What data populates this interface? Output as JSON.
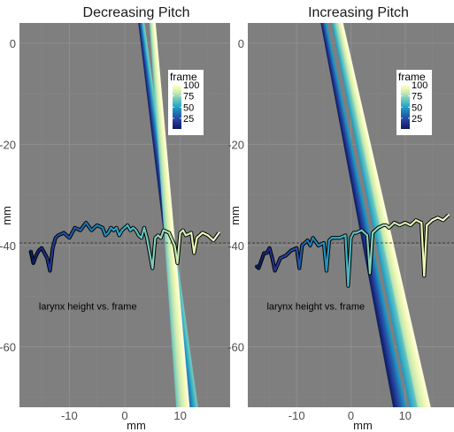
{
  "chart_data": [
    {
      "type": "line",
      "title": "Decreasing Pitch",
      "xlabel": "mm",
      "ylabel": "mm",
      "xlim": [
        -19,
        19
      ],
      "ylim": [
        -72,
        4
      ],
      "x_ticks": [
        -10,
        0,
        10
      ],
      "y_ticks": [
        0,
        -20,
        -40,
        -60
      ],
      "x_tick_labels": [
        "-10",
        "0",
        "10"
      ],
      "y_tick_labels": [
        "0",
        "-20",
        "-40",
        "-60"
      ],
      "grid": true,
      "reference_line_y": -39.5,
      "annotation": "larynx height vs. frame",
      "colorbar": {
        "title": "frame",
        "ticks": [
          100,
          75,
          50,
          25
        ],
        "tick_labels": [
          "100",
          "75",
          "50",
          "25"
        ],
        "range": [
          1,
          100
        ],
        "colors": [
          "#081d58",
          "#253494",
          "#225ea8",
          "#1d91c0",
          "#41b6c4",
          "#7fcdbb",
          "#c7e9b4",
          "#edf8b1",
          "#ffffd9"
        ],
        "placement": "top-right"
      },
      "frame_range": [
        1,
        100
      ],
      "trace_segments": [
        {
          "frame_start": 1,
          "frame_end": 60,
          "x_start": 3.0,
          "x_end": 12.0
        },
        {
          "frame_start": 60,
          "frame_end": 100,
          "x_start": 5.0,
          "x_end": 10.5
        }
      ],
      "trace_y_range": [
        4,
        -72
      ],
      "larynx_series": {
        "x": [
          -17.0,
          -16.5,
          -16.0,
          -15.5,
          -15.0,
          -14.5,
          -14.0,
          -13.5,
          -13.0,
          -12.5,
          -12.0,
          -11.0,
          -10.0,
          -9.0,
          -8.0,
          -7.0,
          -6.0,
          -5.0,
          -4.0,
          -3.5,
          -3.0,
          -2.5,
          -2.0,
          -1.5,
          -1.0,
          -0.5,
          0.0,
          0.5,
          1.0,
          1.5,
          2.0,
          2.5,
          3.0,
          3.5,
          4.0,
          5.0,
          5.5,
          6.0,
          6.5,
          7.0,
          8.0,
          9.0,
          9.5,
          10.0,
          10.5,
          11.0,
          12.0,
          12.5,
          13.0,
          14.0,
          15.0,
          16.0,
          17.0
        ],
        "y": [
          -41.0,
          -43.5,
          -42.0,
          -41.0,
          -40.5,
          -41.5,
          -42.5,
          -45.0,
          -40.5,
          -38.5,
          -38.0,
          -37.5,
          -38.5,
          -36.5,
          -37.0,
          -35.5,
          -37.0,
          -36.0,
          -36.5,
          -38.0,
          -37.5,
          -36.5,
          -37.0,
          -36.5,
          -38.0,
          -37.0,
          -36.5,
          -36.0,
          -37.0,
          -36.5,
          -37.0,
          -38.0,
          -38.5,
          -36.5,
          -38.5,
          -44.5,
          -38.5,
          -38.0,
          -38.5,
          -37.0,
          -37.5,
          -40.0,
          -43.5,
          -37.5,
          -37.0,
          -38.0,
          -37.5,
          -41.5,
          -38.5,
          -37.5,
          -38.0,
          -39.0,
          -37.5
        ],
        "frame": [
          1,
          3,
          5,
          7,
          9,
          11,
          13,
          15,
          17,
          19,
          21,
          23,
          25,
          27,
          29,
          31,
          33,
          35,
          37,
          38,
          40,
          41,
          43,
          44,
          46,
          47,
          49,
          50,
          52,
          53,
          55,
          56,
          58,
          59,
          61,
          64,
          65,
          67,
          68,
          70,
          73,
          75,
          77,
          78,
          80,
          81,
          84,
          86,
          87,
          90,
          93,
          96,
          100
        ]
      }
    },
    {
      "type": "line",
      "title": "Increasing Pitch",
      "xlabel": "mm",
      "ylabel": "mm",
      "xlim": [
        -19,
        19
      ],
      "ylim": [
        -72,
        4
      ],
      "x_ticks": [
        -10,
        0,
        10
      ],
      "y_ticks": [
        0,
        -20,
        -40,
        -60
      ],
      "x_tick_labels": [
        "-10",
        "0",
        "10"
      ],
      "y_tick_labels": [
        "0",
        "-20",
        "-40",
        "-60"
      ],
      "grid": true,
      "reference_line_y": -39.5,
      "annotation": "larynx height vs. frame",
      "colorbar": {
        "title": "frame",
        "ticks": [
          100,
          75,
          50,
          25
        ],
        "tick_labels": [
          "100",
          "75",
          "50",
          "25"
        ],
        "range": [
          1,
          100
        ],
        "colors": [
          "#081d58",
          "#253494",
          "#225ea8",
          "#1d91c0",
          "#41b6c4",
          "#7fcdbb",
          "#c7e9b4",
          "#edf8b1",
          "#ffffd9"
        ],
        "placement": "top-right"
      },
      "frame_range": [
        1,
        100
      ],
      "trace_segments": [
        {
          "frame_start": 1,
          "frame_end": 40,
          "x_start": -5.0,
          "x_end": 9.0
        },
        {
          "frame_start": 40,
          "frame_end": 70,
          "x_start": -3.0,
          "x_end": 12.0
        },
        {
          "frame_start": 70,
          "frame_end": 100,
          "x_start": -2.0,
          "x_end": 13.5
        }
      ],
      "trace_y_range": [
        4,
        -72
      ],
      "larynx_series": {
        "x": [
          -17.5,
          -17.0,
          -16.5,
          -16.0,
          -15.5,
          -15.0,
          -14.5,
          -14.0,
          -13.0,
          -12.0,
          -11.0,
          -10.0,
          -9.5,
          -9.0,
          -8.5,
          -8.0,
          -7.5,
          -7.0,
          -6.0,
          -5.0,
          -4.5,
          -4.0,
          -3.5,
          -3.0,
          -2.0,
          -1.0,
          -0.5,
          0.0,
          0.5,
          1.0,
          2.0,
          3.0,
          3.5,
          4.0,
          5.0,
          6.0,
          6.5,
          7.0,
          8.0,
          9.0,
          10.0,
          11.0,
          12.0,
          13.0,
          13.5,
          14.0,
          15.0,
          16.0,
          17.0,
          18.0
        ],
        "y": [
          -44.0,
          -44.5,
          -43.0,
          -41.5,
          -41.5,
          -40.5,
          -42.5,
          -45.0,
          -42.5,
          -42.0,
          -41.0,
          -40.5,
          -44.5,
          -40.0,
          -39.5,
          -39.0,
          -40.0,
          -38.5,
          -40.0,
          -39.5,
          -45.0,
          -39.0,
          -38.5,
          -38.5,
          -38.5,
          -38.0,
          -48.0,
          -38.5,
          -37.5,
          -37.5,
          -37.0,
          -38.0,
          -45.5,
          -37.5,
          -36.5,
          -36.0,
          -36.0,
          -36.5,
          -35.5,
          -36.0,
          -35.5,
          -36.0,
          -35.0,
          -35.5,
          -46.0,
          -36.0,
          -35.0,
          -34.5,
          -35.0,
          -34.0
        ],
        "frame": [
          1,
          3,
          5,
          7,
          9,
          11,
          13,
          15,
          17,
          19,
          21,
          23,
          25,
          27,
          29,
          31,
          33,
          35,
          37,
          39,
          41,
          43,
          45,
          47,
          49,
          51,
          53,
          55,
          57,
          59,
          61,
          63,
          65,
          67,
          69,
          71,
          73,
          75,
          77,
          79,
          81,
          83,
          85,
          87,
          89,
          91,
          93,
          95,
          97,
          100
        ]
      }
    }
  ]
}
